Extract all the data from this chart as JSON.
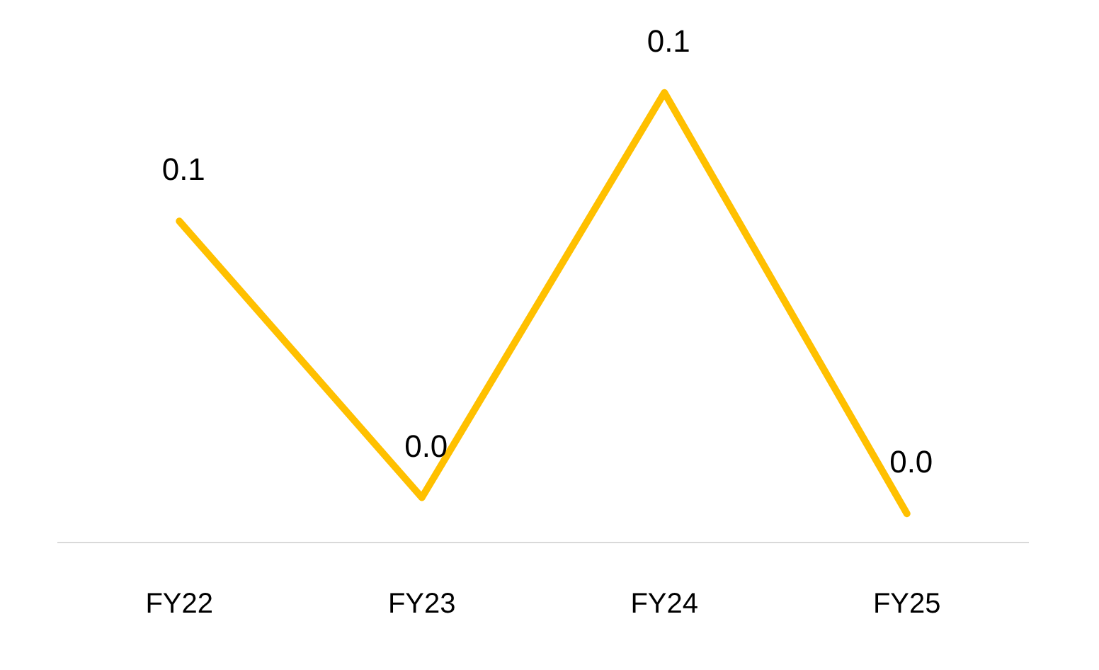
{
  "chart_data": {
    "type": "line",
    "categories": [
      "FY22",
      "FY23",
      "FY24",
      "FY25"
    ],
    "series": [
      {
        "color": "#ffc000",
        "values": [
          0.1,
          0.014,
          0.14,
          0.009
        ],
        "value_labels": [
          "0.1",
          "0.0",
          "0.1",
          "0.0"
        ]
      }
    ],
    "tick_labels": "x",
    "grid": false,
    "legend": false,
    "marker": "none"
  }
}
